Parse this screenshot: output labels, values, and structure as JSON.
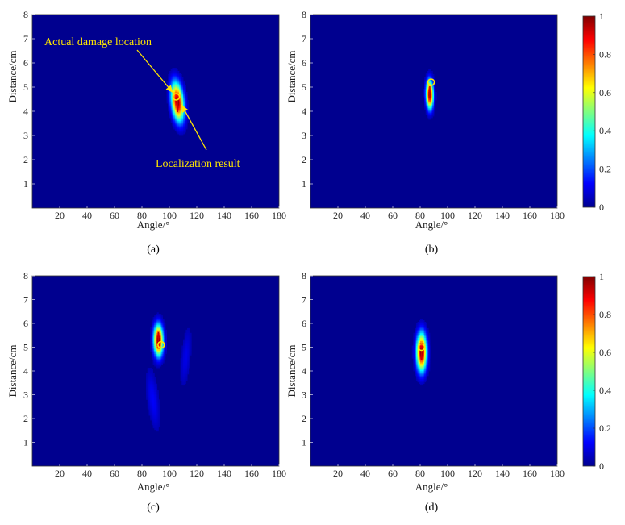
{
  "colors": {
    "background": "#00008f",
    "marker": "#ffe600",
    "annotation": "#ffe600"
  },
  "colorbar": {
    "colormap": "jet",
    "ticks": [
      "0",
      "0.2",
      "0.4",
      "0.6",
      "0.8",
      "1"
    ]
  },
  "chart_data": [
    {
      "type": "heatmap",
      "caption": "(a)",
      "xlabel": "Angle/°",
      "ylabel": "Distance/cm",
      "xlim": [
        0,
        180
      ],
      "ylim": [
        0,
        8
      ],
      "xticks": [
        "20",
        "40",
        "60",
        "80",
        "100",
        "120",
        "140",
        "160",
        "180"
      ],
      "yticks": [
        "1",
        "2",
        "3",
        "4",
        "5",
        "6",
        "7",
        "8"
      ],
      "actual_damage_location": {
        "angle": 105,
        "distance": 4.6
      },
      "localization_result": {
        "angle": 106,
        "distance": 4.2
      },
      "hotspots": [
        {
          "angle": 106,
          "distance": 4.4,
          "sa": 3,
          "sd": 0.55,
          "peak": 1.0,
          "tilt": 0.35
        }
      ],
      "annotations": [
        "Actual damage location",
        "Localization result"
      ]
    },
    {
      "type": "heatmap",
      "caption": "(b)",
      "xlabel": "Angle/°",
      "ylabel": "Distance/cm",
      "xlim": [
        0,
        180
      ],
      "ylim": [
        0,
        8
      ],
      "xticks": [
        "20",
        "40",
        "60",
        "80",
        "100",
        "120",
        "140",
        "160",
        "180"
      ],
      "yticks": [
        "1",
        "2",
        "3",
        "4",
        "5",
        "6",
        "7",
        "8"
      ],
      "actual_damage_location": {
        "angle": 88,
        "distance": 5.2
      },
      "localization_result": {
        "angle": 87,
        "distance": 4.8
      },
      "hotspots": [
        {
          "angle": 87,
          "distance": 4.7,
          "sa": 1.8,
          "sd": 0.4,
          "peak": 1.0,
          "tilt": 0.05
        }
      ],
      "annotations": []
    },
    {
      "type": "heatmap",
      "caption": "(c)",
      "xlabel": "Angle/°",
      "ylabel": "Distance/cm",
      "xlim": [
        0,
        180
      ],
      "ylim": [
        0,
        8
      ],
      "xticks": [
        "20",
        "40",
        "60",
        "80",
        "100",
        "120",
        "140",
        "160",
        "180"
      ],
      "yticks": [
        "1",
        "2",
        "3",
        "4",
        "5",
        "6",
        "7",
        "8"
      ],
      "actual_damage_location": {
        "angle": 94,
        "distance": 5.1
      },
      "localization_result": {
        "angle": 92,
        "distance": 5.4
      },
      "hotspots": [
        {
          "angle": 92,
          "distance": 5.3,
          "sa": 2.4,
          "sd": 0.45,
          "peak": 1.0,
          "tilt": 0.05
        },
        {
          "angle": 88,
          "distance": 2.8,
          "sa": 3,
          "sd": 0.9,
          "peak": 0.12,
          "tilt": 0.4
        },
        {
          "angle": 112,
          "distance": 4.6,
          "sa": 2.5,
          "sd": 0.9,
          "peak": 0.1,
          "tilt": -0.3
        }
      ],
      "annotations": []
    },
    {
      "type": "heatmap",
      "caption": "(d)",
      "xlabel": "Angle/°",
      "ylabel": "Distance/cm",
      "xlim": [
        0,
        180
      ],
      "ylim": [
        0,
        8
      ],
      "xticks": [
        "20",
        "40",
        "60",
        "80",
        "100",
        "120",
        "140",
        "160",
        "180"
      ],
      "yticks": [
        "1",
        "2",
        "3",
        "4",
        "5",
        "6",
        "7",
        "8"
      ],
      "actual_damage_location": {
        "angle": 81,
        "distance": 5.0
      },
      "localization_result": {
        "angle": 81,
        "distance": 4.7
      },
      "hotspots": [
        {
          "angle": 81,
          "distance": 4.8,
          "sa": 2.6,
          "sd": 0.55,
          "peak": 1.0,
          "tilt": 0.0
        }
      ],
      "annotations": []
    }
  ]
}
